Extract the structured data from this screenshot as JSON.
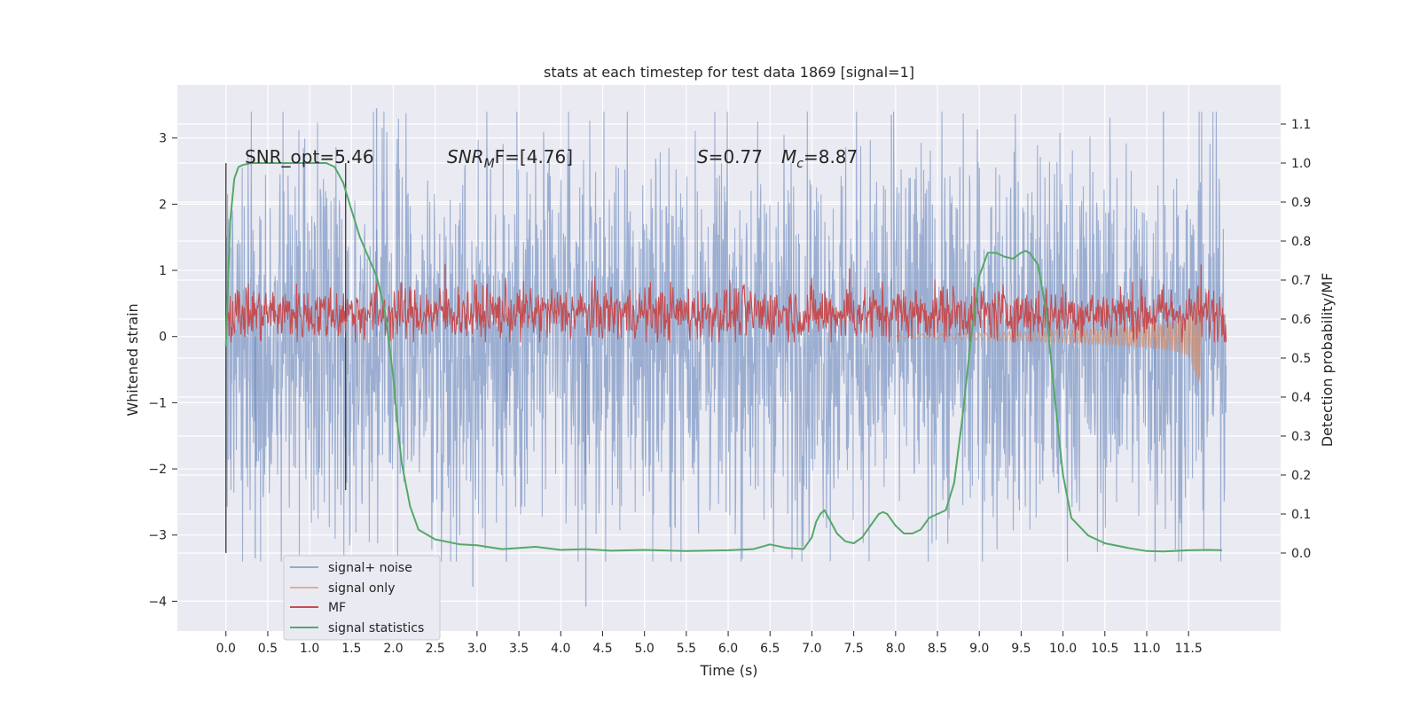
{
  "chart_data": {
    "type": "line",
    "title": "stats at each timestep for test data 1869 [signal=1]",
    "xlabel": "Time (s)",
    "ylabel_left": "Whitened strain",
    "ylabel_right": "Detection probability/MF",
    "xlim": [
      -0.58,
      12.6
    ],
    "ylim_left": [
      -4.45,
      3.8
    ],
    "ylim_right": [
      -0.2,
      1.2
    ],
    "x_ticks": [
      "0.0",
      "0.5",
      "1.0",
      "1.5",
      "2.0",
      "2.5",
      "3.0",
      "3.5",
      "4.0",
      "4.5",
      "5.0",
      "5.5",
      "6.0",
      "6.5",
      "7.0",
      "7.5",
      "8.0",
      "8.5",
      "9.0",
      "9.5",
      "10.0",
      "10.5",
      "11.0",
      "11.5"
    ],
    "y_ticks_left": [
      "3",
      "2",
      "1",
      "0",
      "−1",
      "−2",
      "−3",
      "−4"
    ],
    "y_ticks_right": [
      "1.1",
      "1.0",
      "0.9",
      "0.8",
      "0.7",
      "0.6",
      "0.5",
      "0.4",
      "0.3",
      "0.2",
      "0.1",
      "0.0"
    ],
    "grid": true,
    "legend_position": "lower-left",
    "annotations": {
      "snr_opt": "SNR_opt=5.46",
      "snr_mf_name": "SNR",
      "snr_mf_sub": "M",
      "snr_mf_rest": "F=[4.76]",
      "s_name": "S",
      "s_value": "=0.77",
      "mc_name": "M",
      "mc_sub": "c",
      "mc_value": "=8.87"
    },
    "vertical_markers": [
      {
        "x": 0.0,
        "y_range": [
          -3.27,
          2.62
        ]
      },
      {
        "x": 1.43,
        "y_range": [
          -2.32,
          2.62
        ]
      }
    ],
    "series": [
      {
        "name": "signal+ noise",
        "axis": "left",
        "color": "#4c72b0",
        "kind": "noise_band",
        "x_range": [
          0.0,
          11.95
        ],
        "typical_range": [
          -1.8,
          1.8
        ],
        "peak_range": [
          -3.4,
          3.4
        ],
        "spikes": [
          [
            1.8,
            3.45
          ],
          [
            4.3,
            -4.08
          ],
          [
            2.95,
            -3.78
          ],
          [
            11.2,
            3.4
          ],
          [
            7.95,
            3.35
          ],
          [
            11.1,
            -3.4
          ],
          [
            0.35,
            -3.35
          ],
          [
            3.35,
            -3.4
          ]
        ]
      },
      {
        "name": "signal only",
        "axis": "left",
        "color": "#dd8452",
        "kind": "chirp",
        "x": [
          8.0,
          8.5,
          9.0,
          9.5,
          10.0,
          10.5,
          11.0,
          11.3,
          11.5,
          11.65
        ],
        "amplitude": [
          0.02,
          0.04,
          0.05,
          0.07,
          0.09,
          0.12,
          0.17,
          0.22,
          0.3,
          0.8
        ]
      },
      {
        "name": "MF",
        "axis": "right",
        "color": "#c44e52",
        "kind": "noise_band",
        "x_range": [
          0.0,
          11.95
        ],
        "typical_range": [
          0.57,
          0.66
        ],
        "peak_range": [
          0.54,
          0.71
        ],
        "spikes": [
          [
            2.62,
            0.74
          ],
          [
            7.45,
            0.73
          ],
          [
            11.65,
            0.74
          ]
        ]
      },
      {
        "name": "signal statistics",
        "axis": "right",
        "color": "#55a868",
        "kind": "line",
        "x": [
          0.0,
          0.05,
          0.1,
          0.15,
          0.2,
          0.3,
          0.5,
          0.8,
          1.0,
          1.2,
          1.3,
          1.4,
          1.5,
          1.6,
          1.7,
          1.8,
          1.9,
          2.0,
          2.05,
          2.1,
          2.2,
          2.3,
          2.5,
          2.8,
          3.0,
          3.3,
          3.7,
          4.0,
          4.3,
          4.6,
          5.0,
          5.5,
          6.0,
          6.3,
          6.5,
          6.7,
          6.9,
          7.0,
          7.05,
          7.1,
          7.15,
          7.2,
          7.3,
          7.4,
          7.5,
          7.6,
          7.7,
          7.8,
          7.85,
          7.9,
          8.0,
          8.1,
          8.2,
          8.3,
          8.4,
          8.5,
          8.6,
          8.7,
          8.8,
          8.9,
          9.0,
          9.1,
          9.2,
          9.3,
          9.4,
          9.5,
          9.55,
          9.6,
          9.7,
          9.8,
          9.9,
          10.0,
          10.1,
          10.3,
          10.5,
          10.8,
          11.0,
          11.2,
          11.5,
          11.75,
          11.9
        ],
        "values": [
          0.53,
          0.85,
          0.96,
          0.99,
          0.995,
          1.0,
          1.0,
          1.0,
          1.0,
          1.0,
          0.99,
          0.95,
          0.88,
          0.81,
          0.76,
          0.71,
          0.62,
          0.45,
          0.33,
          0.23,
          0.12,
          0.06,
          0.035,
          0.022,
          0.02,
          0.01,
          0.016,
          0.008,
          0.01,
          0.006,
          0.008,
          0.005,
          0.007,
          0.01,
          0.022,
          0.013,
          0.01,
          0.04,
          0.08,
          0.1,
          0.11,
          0.09,
          0.05,
          0.03,
          0.025,
          0.04,
          0.07,
          0.1,
          0.105,
          0.1,
          0.07,
          0.05,
          0.05,
          0.06,
          0.09,
          0.1,
          0.11,
          0.18,
          0.35,
          0.55,
          0.71,
          0.77,
          0.77,
          0.76,
          0.755,
          0.77,
          0.775,
          0.77,
          0.74,
          0.62,
          0.4,
          0.2,
          0.09,
          0.045,
          0.025,
          0.012,
          0.005,
          0.004,
          0.007,
          0.008,
          0.007
        ]
      }
    ]
  }
}
